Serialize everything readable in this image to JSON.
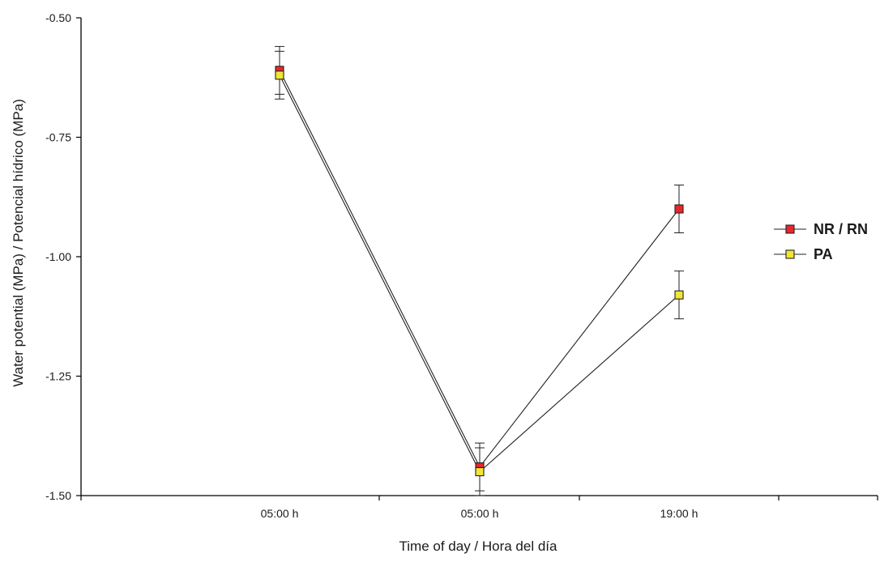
{
  "chart_data": {
    "type": "line",
    "title": "",
    "xlabel": "Time of day / Hora del día",
    "ylabel": "Water potential (MPa) / Potencial hídrico (MPa)",
    "categories": [
      "05:00 h",
      "05:00 h",
      "19:00 h"
    ],
    "ylim": [
      -1.5,
      -0.5
    ],
    "yticks": [
      -0.5,
      -0.75,
      -1.0,
      -1.25,
      -1.5
    ],
    "ytick_labels": [
      "-0.50",
      "-0.75",
      "-1.00",
      "-1.25",
      "-1.50"
    ],
    "grid": false,
    "legend_position": "right",
    "series": [
      {
        "name": "NR / RN",
        "values": [
          -0.61,
          -1.44,
          -0.9
        ],
        "error": [
          0.05,
          0.05,
          0.05
        ],
        "color": "#e8262b"
      },
      {
        "name": "PA",
        "values": [
          -0.62,
          -1.45,
          -1.08
        ],
        "error": [
          0.05,
          0.05,
          0.05
        ],
        "color": "#f2e536"
      }
    ]
  }
}
